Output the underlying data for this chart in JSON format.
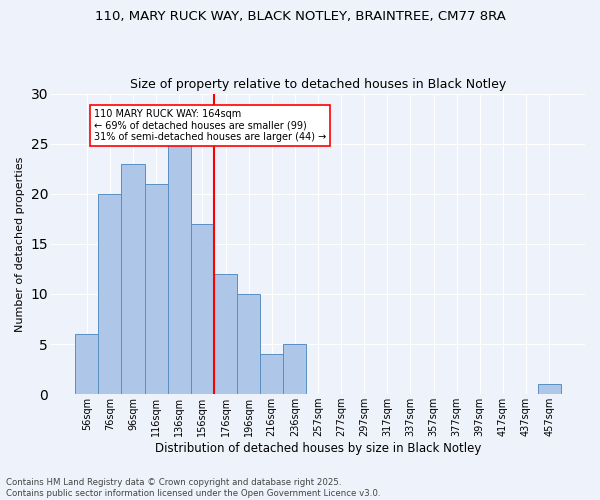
{
  "title1": "110, MARY RUCK WAY, BLACK NOTLEY, BRAINTREE, CM77 8RA",
  "title2": "Size of property relative to detached houses in Black Notley",
  "xlabel": "Distribution of detached houses by size in Black Notley",
  "ylabel": "Number of detached properties",
  "categories": [
    "56sqm",
    "76sqm",
    "96sqm",
    "116sqm",
    "136sqm",
    "156sqm",
    "176sqm",
    "196sqm",
    "216sqm",
    "236sqm",
    "257sqm",
    "277sqm",
    "297sqm",
    "317sqm",
    "337sqm",
    "357sqm",
    "377sqm",
    "397sqm",
    "417sqm",
    "437sqm",
    "457sqm"
  ],
  "values": [
    6,
    20,
    23,
    21,
    25,
    17,
    12,
    10,
    4,
    5,
    0,
    0,
    0,
    0,
    0,
    0,
    0,
    0,
    0,
    0,
    1
  ],
  "bar_color": "#aec6e8",
  "bar_edge_color": "#5a8fc2",
  "vline_color": "red",
  "annotation_text": "110 MARY RUCK WAY: 164sqm\n← 69% of detached houses are smaller (99)\n31% of semi-detached houses are larger (44) →",
  "annotation_box_color": "white",
  "annotation_box_edge": "red",
  "ylim": [
    0,
    30
  ],
  "yticks": [
    0,
    5,
    10,
    15,
    20,
    25,
    30
  ],
  "footer": "Contains HM Land Registry data © Crown copyright and database right 2025.\nContains public sector information licensed under the Open Government Licence v3.0.",
  "bg_color": "#eef2fa",
  "grid_color": "white"
}
